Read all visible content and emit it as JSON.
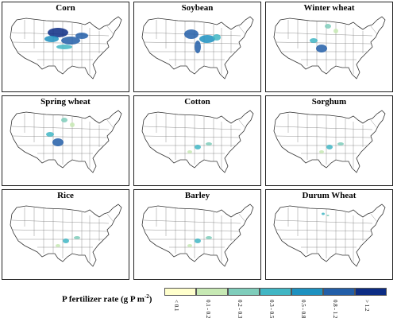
{
  "panels": [
    {
      "title": "Corn",
      "intensity": "high"
    },
    {
      "title": "Soybean",
      "intensity": "medium-high"
    },
    {
      "title": "Winter wheat",
      "intensity": "medium"
    },
    {
      "title": "Spring wheat",
      "intensity": "medium"
    },
    {
      "title": "Cotton",
      "intensity": "low"
    },
    {
      "title": "Sorghum",
      "intensity": "low"
    },
    {
      "title": "Rice",
      "intensity": "low"
    },
    {
      "title": "Barley",
      "intensity": "low"
    },
    {
      "title": "Durum Wheat",
      "intensity": "very-low"
    }
  ],
  "legend": {
    "title": "P fertilizer rate (g P m",
    "title_sup": "-2",
    "title_end": ")",
    "categories": [
      {
        "label": "< 0.1",
        "color": "#ffffcc"
      },
      {
        "label": "0.1 - 0.2",
        "color": "#c7e9b4"
      },
      {
        "label": "0.2 - 0.3",
        "color": "#7fcdbb"
      },
      {
        "label": "0.3 - 0.5",
        "color": "#41b6c4"
      },
      {
        "label": "0.5 - 0.8",
        "color": "#1d91c0"
      },
      {
        "label": "0.8 - 1.2",
        "color": "#225ea8"
      },
      {
        "label": "> 1.2",
        "color": "#0c2c84"
      }
    ]
  }
}
